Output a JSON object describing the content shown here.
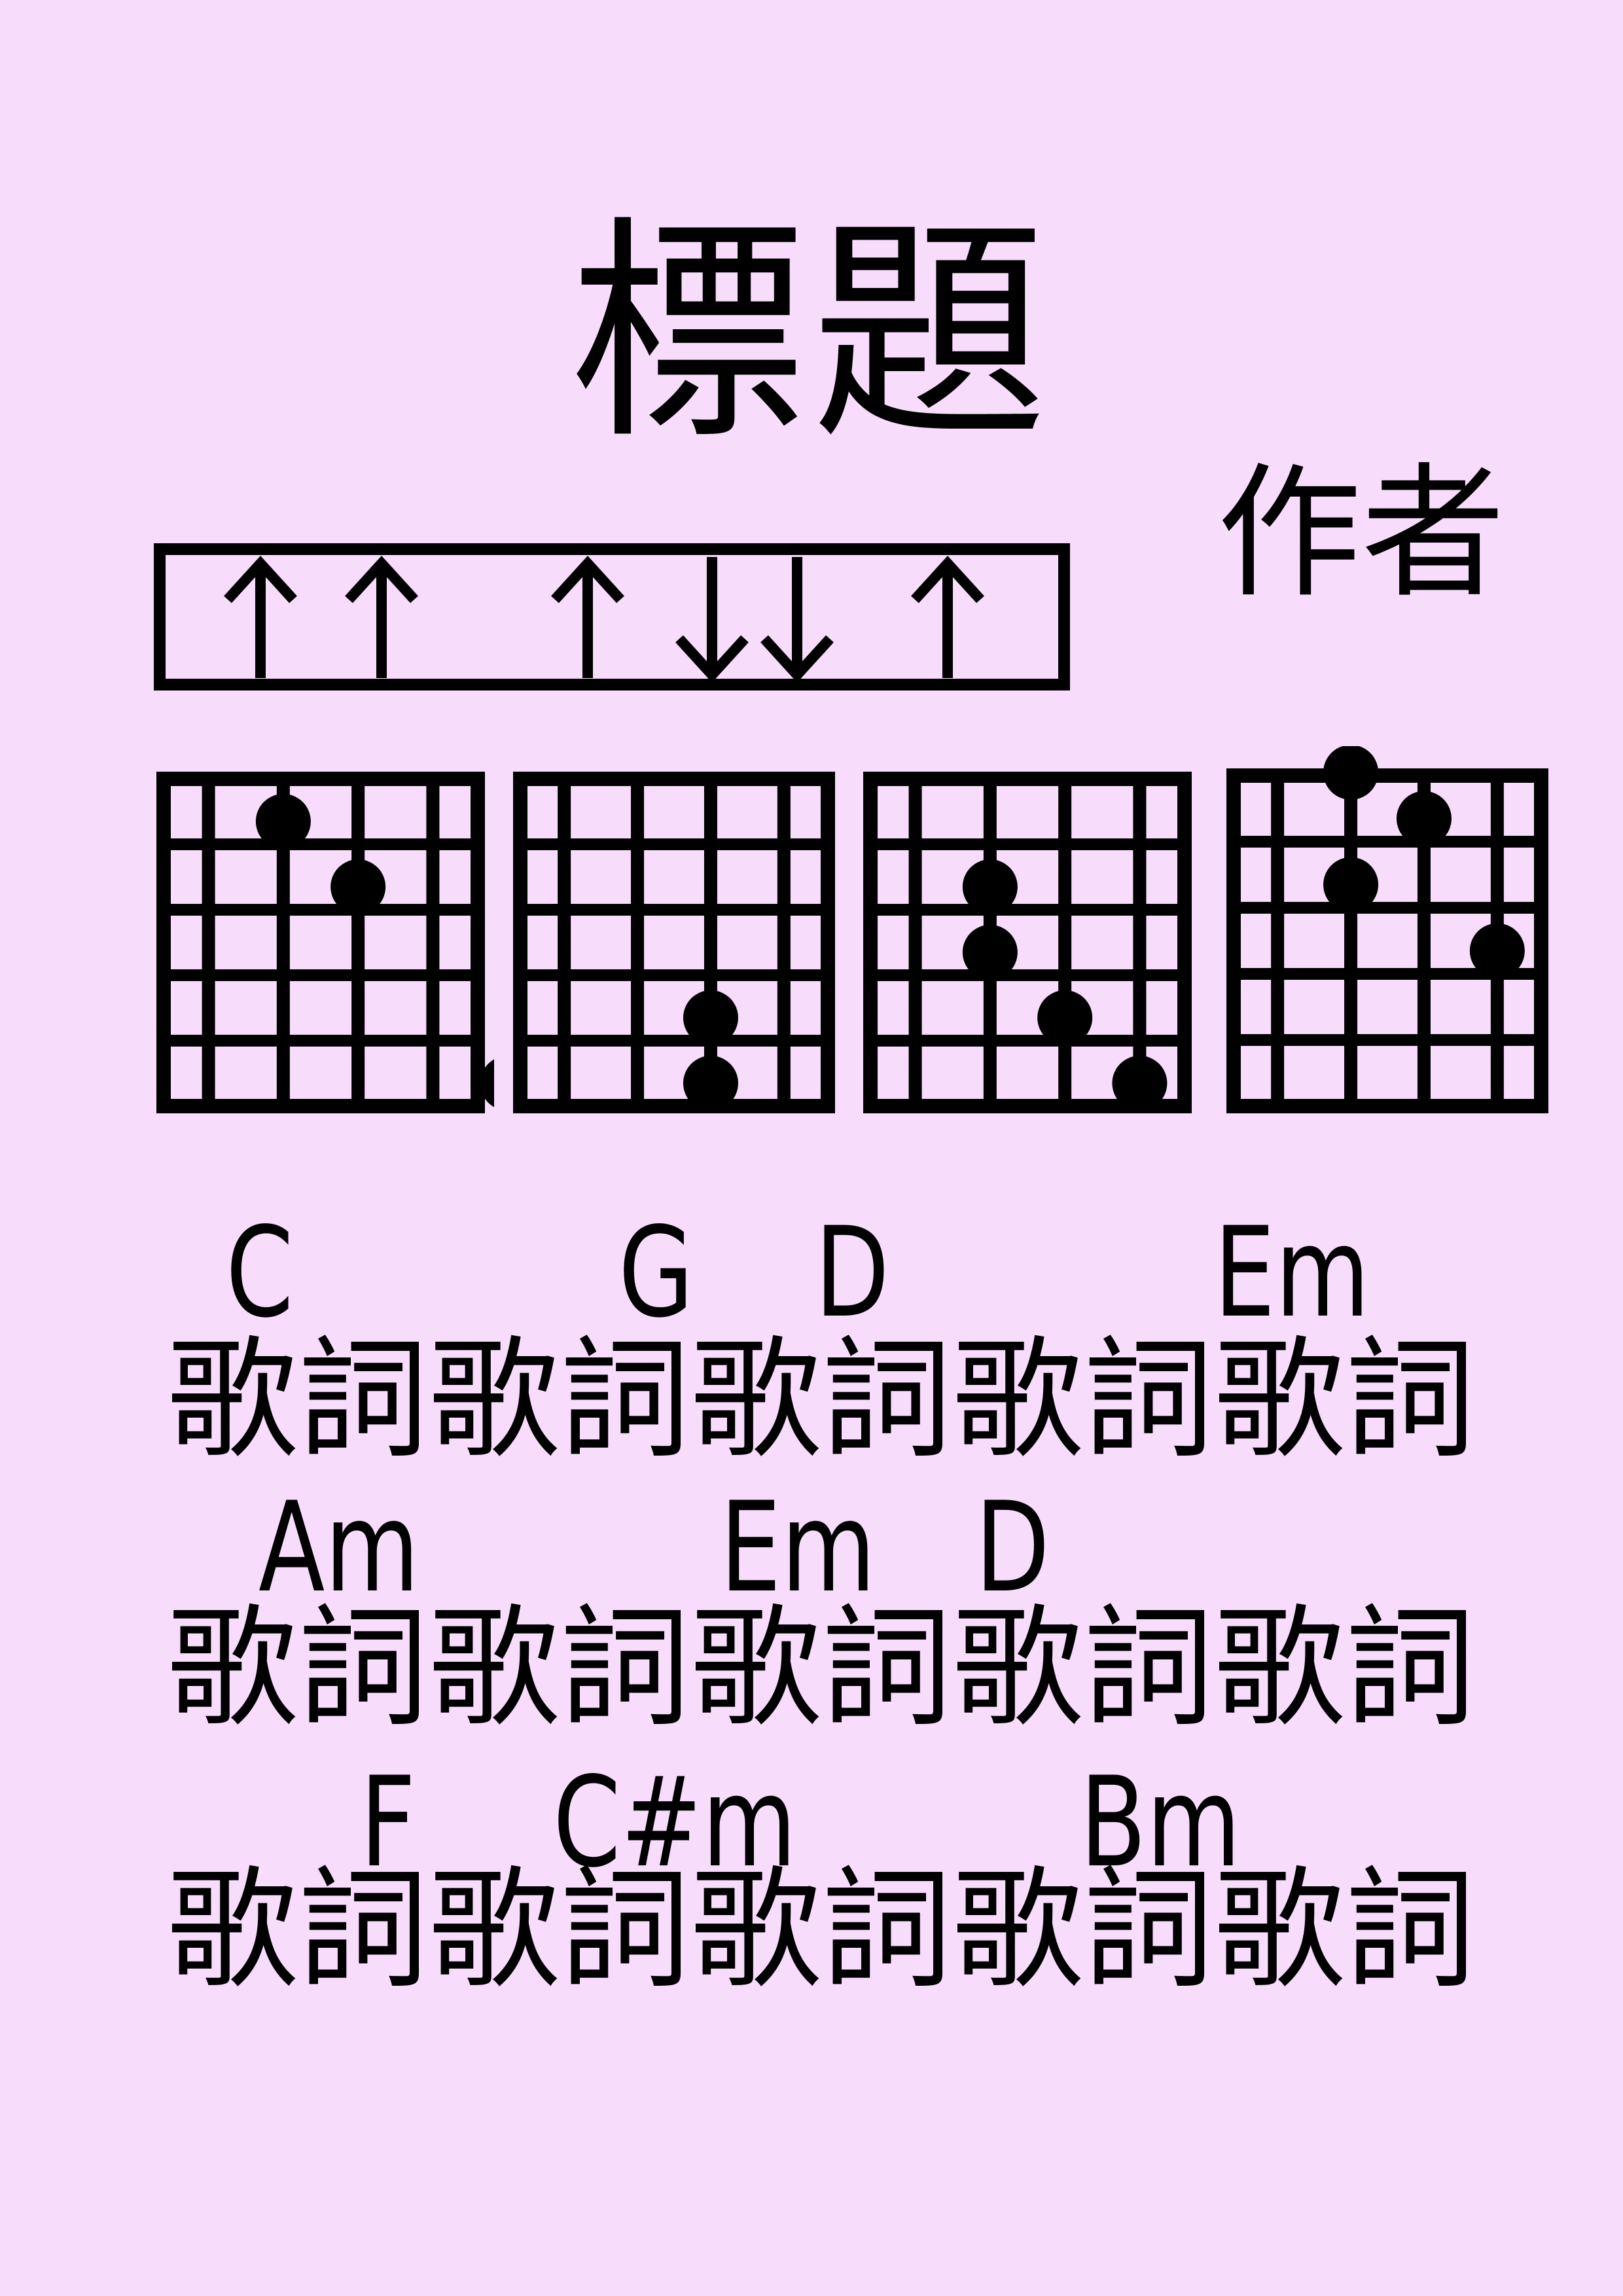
{
  "title": "標題",
  "author": "作者",
  "strum_pattern": [
    "up",
    "up",
    "up",
    "down",
    "down",
    "up"
  ],
  "chord_diagrams": [
    {
      "name": "C",
      "dots": [
        [
          1,
          1
        ],
        [
          2,
          2
        ],
        [
          4,
          5
        ]
      ]
    },
    {
      "name": "G",
      "dots": [
        [
          2,
          4
        ],
        [
          2,
          5
        ]
      ]
    },
    {
      "name": "D",
      "dots": [
        [
          1,
          2
        ],
        [
          1,
          3
        ],
        [
          2,
          4
        ],
        [
          3,
          5
        ]
      ]
    },
    {
      "name": "Em",
      "dots": [
        [
          1,
          0
        ],
        [
          1,
          2
        ],
        [
          2,
          1
        ],
        [
          3,
          3
        ]
      ]
    }
  ],
  "lines": [
    {
      "chords": [
        "C",
        "G",
        "D",
        "Em"
      ],
      "lyric": "歌詞歌詞歌詞歌詞歌詞"
    },
    {
      "chords": [
        "Am",
        "Em",
        "D"
      ],
      "lyric": "歌詞歌詞歌詞歌詞歌詞"
    },
    {
      "chords": [
        "F",
        "C#m",
        "Bm"
      ],
      "lyric": "歌詞歌詞歌詞歌詞歌詞"
    }
  ]
}
